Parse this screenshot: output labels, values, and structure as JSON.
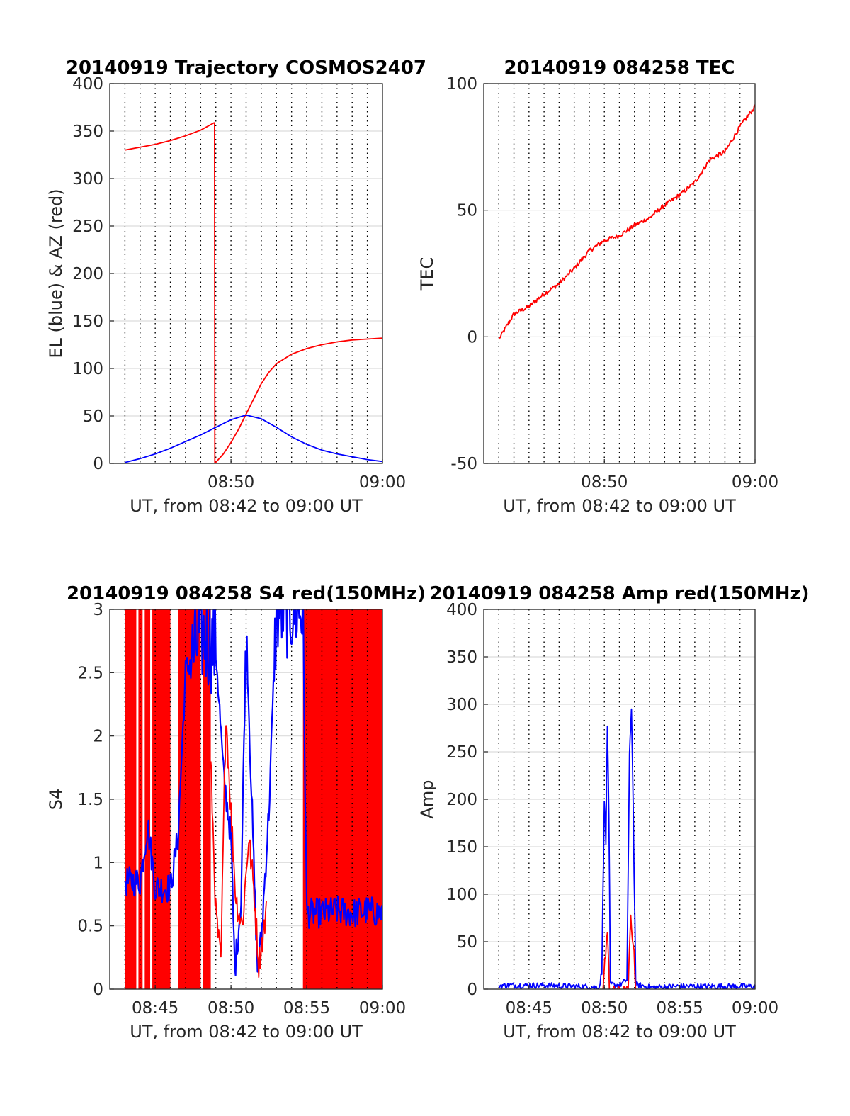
{
  "figure": {
    "background": "#ffffff"
  },
  "chart_data": [
    {
      "id": "trajectory",
      "type": "line",
      "title": "20140919 Trajectory COSMOS2407",
      "xlabel": "UT, from 08:42 to 09:00 UT",
      "ylabel": "EL (blue) & AZ (red)",
      "xlim": [
        "08:42:00",
        "09:00:00"
      ],
      "ylim": [
        0,
        400
      ],
      "yticks": [
        "0",
        "50",
        "100",
        "150",
        "200",
        "250",
        "300",
        "350",
        "400"
      ],
      "xticks": [
        {
          "t": "08:50",
          "label": "08:50"
        },
        {
          "t": "09:00",
          "label": "09:00"
        }
      ],
      "grid": true,
      "vertical_dotted_minutes": true,
      "series": [
        {
          "color": "#ff0000",
          "points": [
            [
              "08:43:00",
              330
            ],
            [
              "08:44:00",
              333
            ],
            [
              "08:45:00",
              336
            ],
            [
              "08:46:00",
              340
            ],
            [
              "08:47:00",
              345
            ],
            [
              "08:48:00",
              351
            ],
            [
              "08:48:55",
              359
            ],
            [
              "08:48:56",
              0
            ],
            [
              "08:49:30",
              10
            ],
            [
              "08:50:00",
              22
            ],
            [
              "08:50:30",
              36
            ],
            [
              "08:51:00",
              52
            ],
            [
              "08:51:30",
              68
            ],
            [
              "08:52:00",
              84
            ],
            [
              "08:52:30",
              96
            ],
            [
              "08:53:00",
              105
            ],
            [
              "08:54:00",
              115
            ],
            [
              "08:55:00",
              121
            ],
            [
              "08:56:00",
              125
            ],
            [
              "08:57:00",
              128
            ],
            [
              "08:58:00",
              130
            ],
            [
              "08:59:00",
              131
            ],
            [
              "09:00:00",
              132
            ]
          ]
        },
        {
          "color": "#0000ff",
          "points": [
            [
              "08:43:00",
              1
            ],
            [
              "08:44:00",
              5
            ],
            [
              "08:45:00",
              10
            ],
            [
              "08:46:00",
              16
            ],
            [
              "08:47:00",
              23
            ],
            [
              "08:48:00",
              30
            ],
            [
              "08:49:00",
              38
            ],
            [
              "08:50:00",
              46
            ],
            [
              "08:51:00",
              51
            ],
            [
              "08:52:00",
              47
            ],
            [
              "08:53:00",
              38
            ],
            [
              "08:54:00",
              28
            ],
            [
              "08:55:00",
              20
            ],
            [
              "08:56:00",
              14
            ],
            [
              "08:57:00",
              10
            ],
            [
              "08:58:00",
              7
            ],
            [
              "08:59:00",
              4
            ],
            [
              "09:00:00",
              2
            ]
          ]
        }
      ]
    },
    {
      "id": "tec",
      "type": "line",
      "title": "20140919 084258 TEC",
      "xlabel": "UT, from 08:42 to 09:00 UT",
      "ylabel": "TEC",
      "xlim": [
        "08:42:00",
        "09:00:00"
      ],
      "ylim": [
        -50,
        100
      ],
      "yticks": [
        "-50",
        "0",
        "50",
        "100"
      ],
      "xticks": [
        {
          "t": "08:50",
          "label": "08:50"
        },
        {
          "t": "09:00",
          "label": "09:00"
        }
      ],
      "grid": true,
      "vertical_dotted_minutes": true,
      "series": [
        {
          "color": "#ff0000",
          "points": [
            [
              "08:43:00",
              -1
            ],
            [
              "08:44:00",
              9
            ],
            [
              "08:45:00",
              12
            ],
            [
              "08:46:00",
              17
            ],
            [
              "08:47:00",
              21
            ],
            [
              "08:48:00",
              27
            ],
            [
              "08:49:00",
              34
            ],
            [
              "08:50:00",
              38
            ],
            [
              "08:51:00",
              40
            ],
            [
              "08:52:00",
              44
            ],
            [
              "08:53:00",
              47
            ],
            [
              "08:54:00",
              52
            ],
            [
              "08:55:00",
              56
            ],
            [
              "08:56:00",
              61
            ],
            [
              "08:57:00",
              70
            ],
            [
              "08:58:00",
              73
            ],
            [
              "08:59:00",
              83
            ],
            [
              "09:00:00",
              91
            ]
          ]
        }
      ]
    },
    {
      "id": "s4",
      "type": "line",
      "title": "20140919 084258 S4 red(150MHz)",
      "xlabel": "UT, from 08:42 to 09:00 UT",
      "ylabel": "S4",
      "xlim": [
        "08:42:00",
        "09:00:00"
      ],
      "ylim": [
        0,
        3
      ],
      "yticks": [
        "0",
        "0.5",
        "1",
        "1.5",
        "2",
        "2.5",
        "3"
      ],
      "xticks": [
        {
          "t": "08:45",
          "label": "08:45"
        },
        {
          "t": "08:50",
          "label": "08:50"
        },
        {
          "t": "08:55",
          "label": "08:55"
        },
        {
          "t": "09:00",
          "label": "09:00"
        }
      ],
      "grid": true,
      "vertical_dotted_minutes": true,
      "red_fill_ranges": [
        [
          "08:43:00",
          "08:46:00"
        ],
        [
          "08:46:30",
          "08:48:40"
        ],
        [
          "08:54:45",
          "09:00:00"
        ]
      ],
      "series": [
        {
          "color": "#0000ff",
          "points": [
            [
              "08:43:00",
              0.85
            ],
            [
              "08:44:00",
              0.85
            ],
            [
              "08:44:30",
              1.3
            ],
            [
              "08:45:00",
              0.8
            ],
            [
              "08:46:00",
              0.8
            ],
            [
              "08:46:30",
              1.2
            ],
            [
              "08:47:00",
              2.5
            ],
            [
              "08:48:00",
              2.8
            ],
            [
              "08:49:00",
              2.7
            ],
            [
              "08:49:30",
              1.7
            ],
            [
              "08:50:00",
              1.2
            ],
            [
              "08:50:15",
              0.15
            ],
            [
              "08:50:40",
              0.7
            ],
            [
              "08:51:00",
              2.9
            ],
            [
              "08:51:30",
              1.0
            ],
            [
              "08:51:45",
              0.15
            ],
            [
              "08:52:00",
              0.4
            ],
            [
              "08:52:30",
              1.4
            ],
            [
              "08:53:00",
              3.0
            ],
            [
              "08:54:00",
              3.0
            ],
            [
              "08:54:45",
              3.0
            ],
            [
              "08:55:00",
              0.6
            ],
            [
              "08:56:00",
              0.6
            ],
            [
              "08:57:00",
              0.62
            ],
            [
              "08:58:00",
              0.6
            ],
            [
              "08:59:00",
              0.62
            ],
            [
              "09:00:00",
              0.6
            ]
          ]
        },
        {
          "color": "#ff0000",
          "points": [
            [
              "08:48:40",
              1.8
            ],
            [
              "08:49:00",
              0.6
            ],
            [
              "08:49:20",
              0.2
            ],
            [
              "08:49:40",
              2.2
            ],
            [
              "08:50:00",
              1.4
            ],
            [
              "08:50:20",
              0.7
            ],
            [
              "08:50:45",
              0.5
            ],
            [
              "08:51:10",
              1.2
            ],
            [
              "08:51:30",
              0.8
            ],
            [
              "08:51:50",
              0.2
            ],
            [
              "08:52:20",
              0.6
            ]
          ]
        }
      ]
    },
    {
      "id": "amp",
      "type": "line",
      "title": "20140919 084258 Amp red(150MHz)",
      "xlabel": "UT, from 08:42 to 09:00 UT",
      "ylabel": "Amp",
      "xlim": [
        "08:42:00",
        "09:00:00"
      ],
      "ylim": [
        0,
        400
      ],
      "yticks": [
        "0",
        "50",
        "100",
        "150",
        "200",
        "250",
        "300",
        "350",
        "400"
      ],
      "xticks": [
        {
          "t": "08:45",
          "label": "08:45"
        },
        {
          "t": "08:50",
          "label": "08:50"
        },
        {
          "t": "08:55",
          "label": "08:55"
        },
        {
          "t": "09:00",
          "label": "09:00"
        }
      ],
      "grid": true,
      "vertical_dotted_minutes": true,
      "series": [
        {
          "color": "#0000ff",
          "points": [
            [
              "08:43:00",
              4
            ],
            [
              "08:46:00",
              4
            ],
            [
              "08:48:00",
              3
            ],
            [
              "08:49:40",
              2
            ],
            [
              "08:49:50",
              20
            ],
            [
              "08:50:00",
              205
            ],
            [
              "08:50:06",
              150
            ],
            [
              "08:50:12",
              281
            ],
            [
              "08:50:18",
              180
            ],
            [
              "08:50:24",
              5
            ],
            [
              "08:51:00",
              4
            ],
            [
              "08:51:30",
              10
            ],
            [
              "08:51:40",
              240
            ],
            [
              "08:51:48",
              300
            ],
            [
              "08:51:55",
              190
            ],
            [
              "08:52:05",
              5
            ],
            [
              "08:53:00",
              2
            ],
            [
              "08:55:00",
              3
            ],
            [
              "09:00:00",
              3
            ]
          ]
        },
        {
          "color": "#ff0000",
          "points": [
            [
              "08:49:55",
              0
            ],
            [
              "08:50:05",
              40
            ],
            [
              "08:50:12",
              60
            ],
            [
              "08:50:20",
              0
            ],
            [
              "08:51:35",
              0
            ],
            [
              "08:51:45",
              75
            ],
            [
              "08:51:55",
              50
            ],
            [
              "08:52:05",
              0
            ]
          ]
        }
      ]
    }
  ]
}
